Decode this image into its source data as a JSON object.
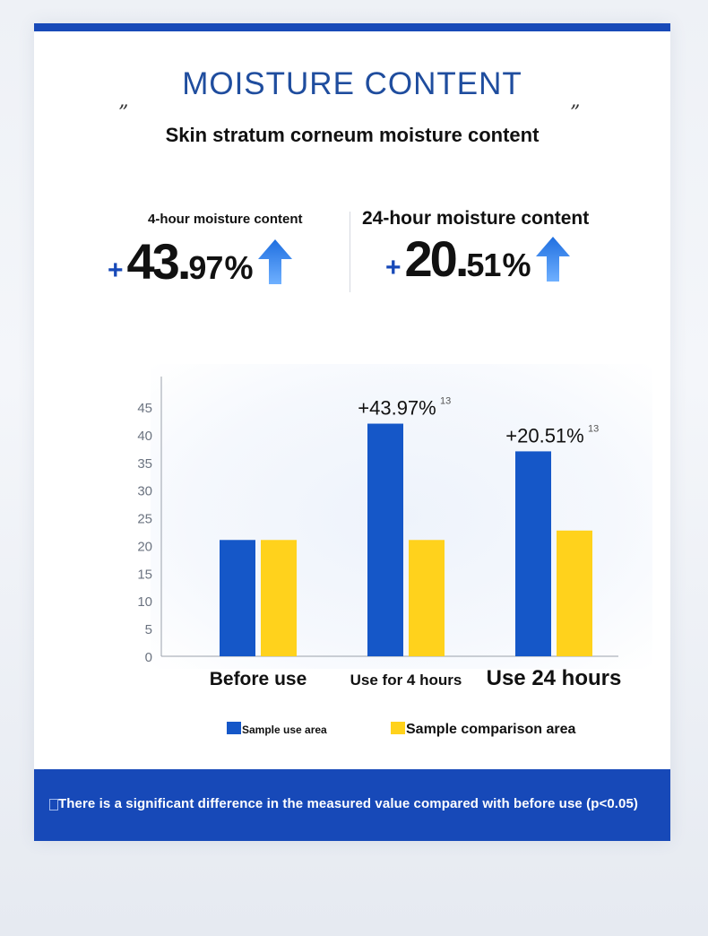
{
  "header": {
    "title": "MOISTURE CONTENT",
    "quote_open": "”",
    "quote_close": "”",
    "subtitle": "Skin stratum corneum moisture content"
  },
  "stats": {
    "left": {
      "label": "4-hour moisture content",
      "sign": "+",
      "whole": "43.",
      "fraction": "97",
      "percent": "%",
      "arrow_icon": "up-arrow-icon"
    },
    "right": {
      "label": "24-hour moisture content",
      "sign": "+",
      "whole": "20.",
      "fraction": "51",
      "percent": "%",
      "arrow_icon": "up-arrow-icon"
    }
  },
  "chart_data": {
    "type": "bar",
    "categories": [
      "Before use",
      "Use for 4 hours",
      "Use 24 hours"
    ],
    "series": [
      {
        "name": "Sample use area",
        "values": [
          21,
          42,
          37
        ],
        "color": "#1557c8"
      },
      {
        "name": "Sample comparison area",
        "values": [
          21,
          21,
          22.7
        ],
        "color": "#ffd21c"
      }
    ],
    "ylim": [
      0,
      45
    ],
    "yticks": [
      0,
      5,
      10,
      15,
      20,
      25,
      30,
      35,
      40,
      45
    ],
    "annotations": [
      {
        "category": "Use for 4 hours",
        "text": "+43.97%",
        "superscript": "13"
      },
      {
        "category": "Use 24 hours",
        "text": "+20.51%",
        "superscript": "13"
      }
    ],
    "legend_position": "bottom",
    "grid": false
  },
  "footer": {
    "note": "There is a significant difference in the measured value compared with before use (p<0.05)",
    "icon": "document-icon"
  },
  "colors": {
    "brand_blue": "#1749b8",
    "title_blue": "#1f4d9e",
    "bar_blue": "#1557c8",
    "bar_yellow": "#ffd21c",
    "arrow_blue": "#1f6fe0"
  }
}
